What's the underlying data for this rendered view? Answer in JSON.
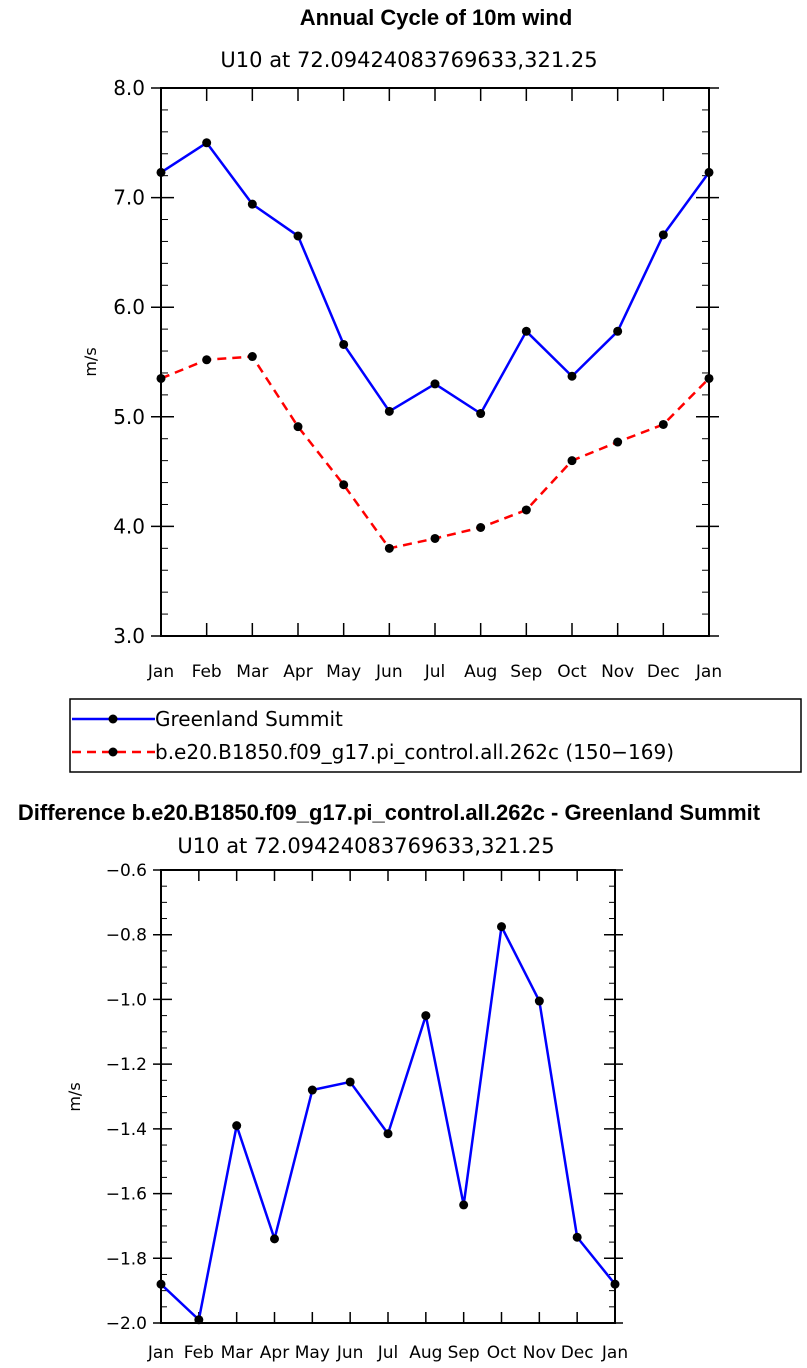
{
  "chart_data": [
    {
      "type": "line",
      "title": "Annual Cycle of 10m wind",
      "subtitle": "U10 at 72.09424083769633,321.25",
      "ylabel": "m/s",
      "ylim": [
        3.0,
        8.0
      ],
      "yticks": [
        "3.0",
        "4.0",
        "5.0",
        "6.0",
        "7.0",
        "8.0"
      ],
      "categories": [
        "Jan",
        "Feb",
        "Mar",
        "Apr",
        "May",
        "Jun",
        "Jul",
        "Aug",
        "Sep",
        "Oct",
        "Nov",
        "Dec",
        "Jan"
      ],
      "series": [
        {
          "name": "Greenland Summit",
          "color": "#0000ff",
          "dash": "solid",
          "values": [
            7.23,
            7.5,
            6.94,
            6.65,
            5.66,
            5.05,
            5.3,
            5.03,
            5.78,
            5.37,
            5.78,
            6.66,
            7.23
          ]
        },
        {
          "name": "b.e20.B1850.f09_g17.pi_control.all.262c (150−169)",
          "color": "#ff0000",
          "dash": "dashed",
          "values": [
            5.35,
            5.52,
            5.55,
            4.91,
            4.38,
            3.8,
            3.89,
            3.99,
            4.15,
            4.6,
            4.77,
            4.93,
            5.35
          ]
        }
      ],
      "legend_position": "below"
    },
    {
      "type": "line",
      "title": "Difference b.e20.B1850.f09_g17.pi_control.all.262c - Greenland Summit",
      "subtitle": "U10 at 72.09424083769633,321.25",
      "ylabel": "m/s",
      "ylim": [
        -2.0,
        -0.6
      ],
      "yticks": [
        "−2.0",
        "−1.8",
        "−1.6",
        "−1.4",
        "−1.2",
        "−1.0",
        "−0.8",
        "−0.6"
      ],
      "categories": [
        "Jan",
        "Feb",
        "Mar",
        "Apr",
        "May",
        "Jun",
        "Jul",
        "Aug",
        "Sep",
        "Oct",
        "Nov",
        "Dec",
        "Jan"
      ],
      "series": [
        {
          "color": "#0000ff",
          "dash": "solid",
          "values": [
            -1.88,
            -1.99,
            -1.39,
            -1.74,
            -1.28,
            -1.255,
            -1.415,
            -1.05,
            -1.635,
            -0.775,
            -1.005,
            -1.735,
            -1.88
          ]
        }
      ]
    }
  ]
}
